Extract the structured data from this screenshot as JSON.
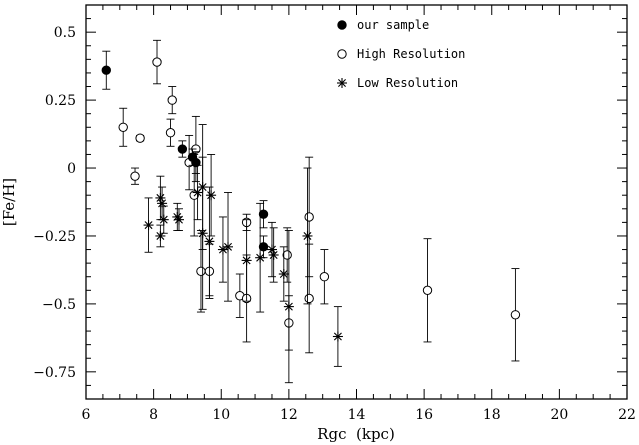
{
  "chart_data": {
    "type": "scatter",
    "title": "",
    "xlabel": "Rgc  (kpc)",
    "ylabel": "[Fe/H]",
    "xlim": [
      6,
      22
    ],
    "ylim": [
      -0.85,
      0.6
    ],
    "x_ticks": [
      6,
      8,
      10,
      12,
      14,
      16,
      18,
      20,
      22
    ],
    "y_ticks": [
      0.5,
      0.25,
      0,
      -0.25,
      -0.5,
      -0.75
    ],
    "y_tick_labels": [
      "0.5",
      "0.25",
      "0",
      "−0.25",
      "−0.5",
      "−0.75"
    ],
    "grid": false,
    "legend_position": "top-right",
    "series": [
      {
        "name": "our sample",
        "marker": "filled-circle",
        "points": [
          {
            "x": 6.6,
            "y": 0.36,
            "err": 0.07
          },
          {
            "x": 8.85,
            "y": 0.07,
            "err": 0.03
          },
          {
            "x": 9.15,
            "y": 0.04,
            "err": 0.03
          },
          {
            "x": 9.25,
            "y": 0.02,
            "err": 0.04
          },
          {
            "x": 11.25,
            "y": -0.17,
            "err": 0.05
          },
          {
            "x": 11.25,
            "y": -0.29,
            "err": 0.04
          }
        ]
      },
      {
        "name": "High Resolution",
        "marker": "open-circle",
        "points": [
          {
            "x": 7.1,
            "y": 0.15,
            "err": 0.07
          },
          {
            "x": 7.45,
            "y": -0.03,
            "err": 0.03
          },
          {
            "x": 7.6,
            "y": 0.11,
            "err": 0.01
          },
          {
            "x": 8.1,
            "y": 0.39,
            "err": 0.08
          },
          {
            "x": 8.55,
            "y": 0.25,
            "err": 0.05
          },
          {
            "x": 8.5,
            "y": 0.13,
            "err": 0.05
          },
          {
            "x": 9.05,
            "y": 0.02,
            "err": 0.1
          },
          {
            "x": 9.25,
            "y": 0.07,
            "err": 0.12
          },
          {
            "x": 9.2,
            "y": -0.1,
            "err": 0.15
          },
          {
            "x": 9.4,
            "y": -0.38,
            "err": 0.15
          },
          {
            "x": 9.65,
            "y": -0.38,
            "err": 0.1
          },
          {
            "x": 10.55,
            "y": -0.47,
            "err": 0.08
          },
          {
            "x": 10.75,
            "y": -0.48,
            "err": 0.16
          },
          {
            "x": 10.75,
            "y": -0.2,
            "err": 0.03
          },
          {
            "x": 11.95,
            "y": -0.32,
            "err": 0.1
          },
          {
            "x": 12.0,
            "y": -0.57,
            "err": 0.1
          },
          {
            "x": 12.6,
            "y": -0.18,
            "err": 0.22
          },
          {
            "x": 12.6,
            "y": -0.48,
            "err": 0.2
          },
          {
            "x": 13.05,
            "y": -0.4,
            "err": 0.1
          },
          {
            "x": 16.1,
            "y": -0.45,
            "err": 0.19
          },
          {
            "x": 18.7,
            "y": -0.54,
            "err": 0.17
          }
        ]
      },
      {
        "name": "Low Resolution",
        "marker": "asterisk",
        "points": [
          {
            "x": 7.85,
            "y": -0.21,
            "err": 0.1
          },
          {
            "x": 8.2,
            "y": -0.11,
            "err": 0.08
          },
          {
            "x": 8.25,
            "y": -0.13,
            "err": 0.06
          },
          {
            "x": 8.3,
            "y": -0.19,
            "err": 0.05
          },
          {
            "x": 8.2,
            "y": -0.25,
            "err": 0.04
          },
          {
            "x": 8.7,
            "y": -0.18,
            "err": 0.05
          },
          {
            "x": 8.75,
            "y": -0.19,
            "err": 0.04
          },
          {
            "x": 9.3,
            "y": -0.09,
            "err": 0.1
          },
          {
            "x": 9.45,
            "y": -0.07,
            "err": 0.23
          },
          {
            "x": 9.45,
            "y": -0.24,
            "err": 0.28
          },
          {
            "x": 9.7,
            "y": -0.1,
            "err": 0.15
          },
          {
            "x": 9.65,
            "y": -0.27,
            "err": 0.2
          },
          {
            "x": 10.05,
            "y": -0.3,
            "err": 0.12
          },
          {
            "x": 10.2,
            "y": -0.29,
            "err": 0.2
          },
          {
            "x": 10.75,
            "y": -0.34,
            "err": 0.15
          },
          {
            "x": 11.15,
            "y": -0.33,
            "err": 0.2
          },
          {
            "x": 11.5,
            "y": -0.3,
            "err": 0.1
          },
          {
            "x": 11.55,
            "y": -0.32,
            "err": 0.1
          },
          {
            "x": 11.85,
            "y": -0.39,
            "err": 0.1
          },
          {
            "x": 12.0,
            "y": -0.51,
            "err": 0.28
          },
          {
            "x": 12.55,
            "y": -0.25,
            "err": 0.25
          },
          {
            "x": 13.45,
            "y": -0.62,
            "err": 0.11
          }
        ]
      }
    ]
  }
}
